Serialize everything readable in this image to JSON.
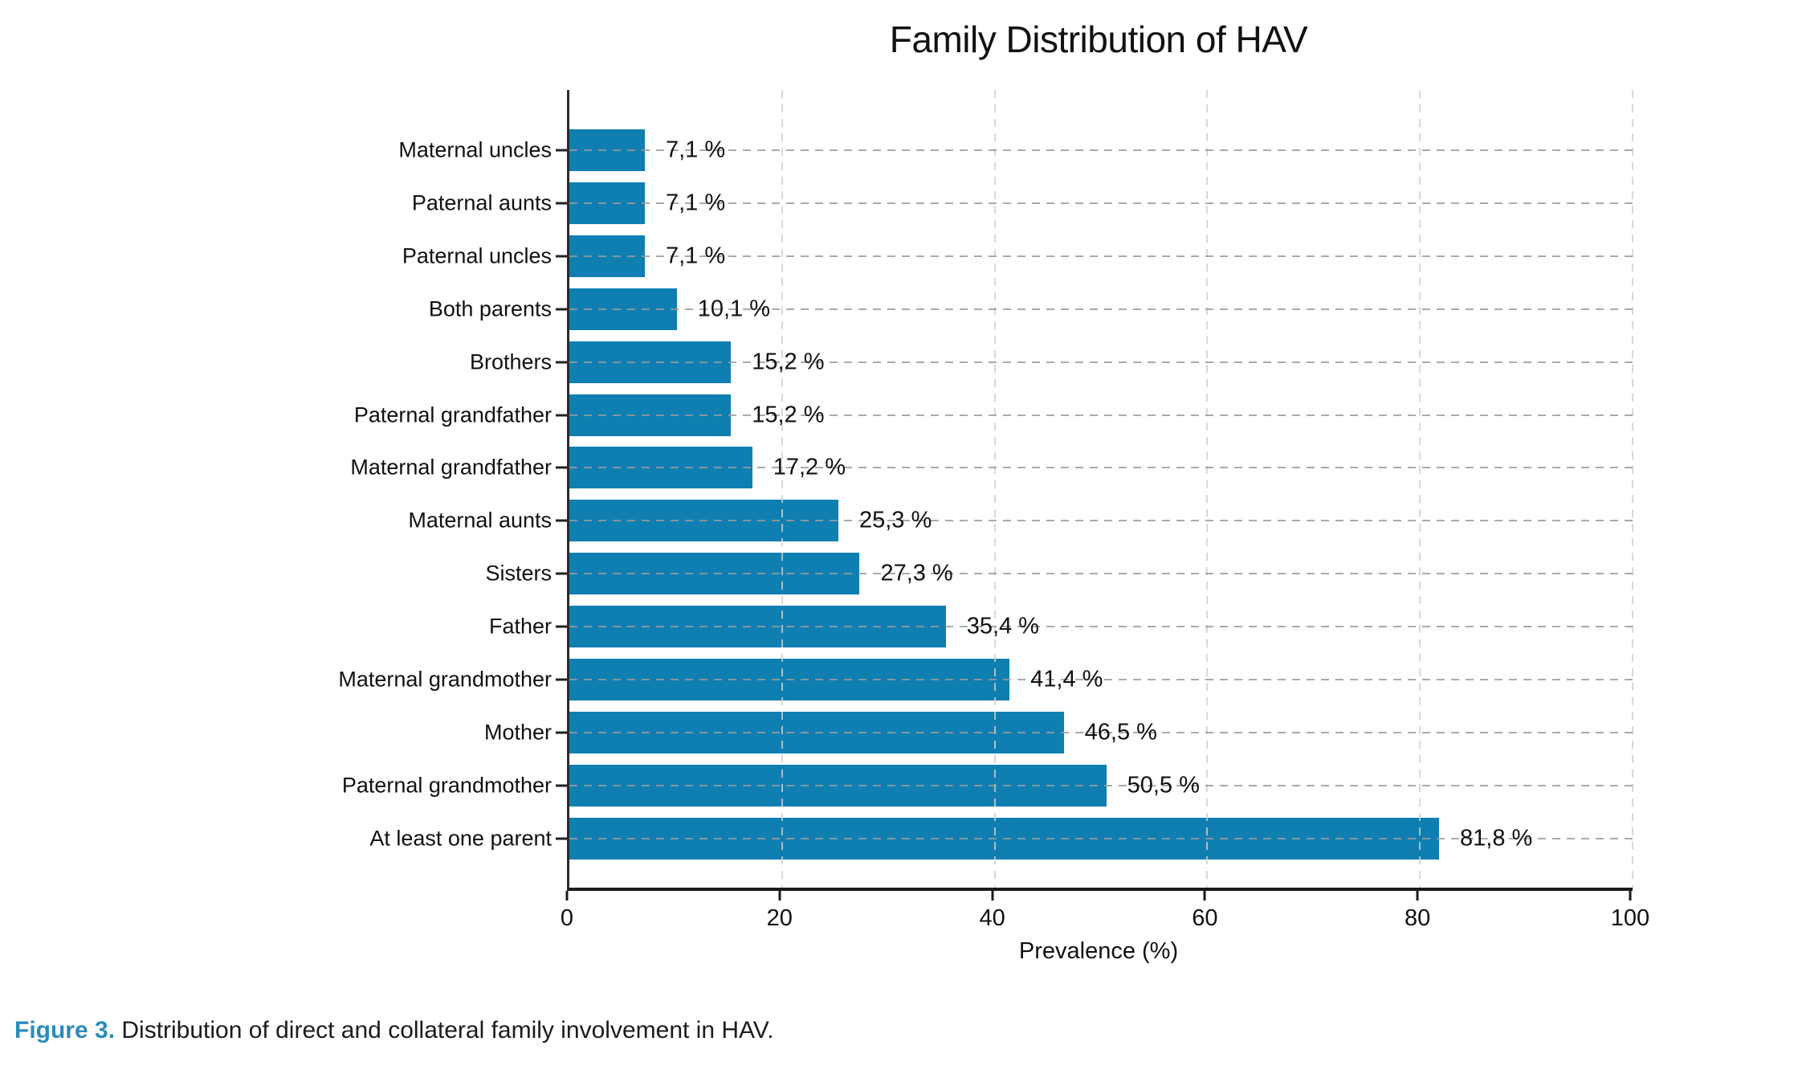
{
  "chart_data": {
    "type": "bar",
    "orientation": "horizontal",
    "title": "Family Distribution of HAV",
    "xlabel": "Prevalence (%)",
    "ylabel": "",
    "xlim": [
      0,
      100
    ],
    "grid": "dashed",
    "legend": "none",
    "bar_color": "#0f7fb2",
    "rows": [
      {
        "label": "Maternal uncles",
        "value": 7.1,
        "display": "7,1 %"
      },
      {
        "label": "Paternal aunts",
        "value": 7.1,
        "display": "7,1 %"
      },
      {
        "label": "Paternal uncles",
        "value": 7.1,
        "display": "7,1 %"
      },
      {
        "label": "Both parents",
        "value": 10.1,
        "display": "10,1 %"
      },
      {
        "label": "Brothers",
        "value": 15.2,
        "display": "15,2 %"
      },
      {
        "label": "Paternal grandfather",
        "value": 15.2,
        "display": "15,2 %"
      },
      {
        "label": "Maternal grandfather",
        "value": 17.2,
        "display": "17,2 %"
      },
      {
        "label": "Maternal aunts",
        "value": 25.3,
        "display": "25,3 %"
      },
      {
        "label": "Sisters",
        "value": 27.3,
        "display": "27,3 %"
      },
      {
        "label": "Father",
        "value": 35.4,
        "display": "35,4 %"
      },
      {
        "label": "Maternal grandmother",
        "value": 41.4,
        "display": "41,4 %"
      },
      {
        "label": "Mother",
        "value": 46.5,
        "display": "46,5 %"
      },
      {
        "label": "Paternal grandmother",
        "value": 50.5,
        "display": "50,5 %"
      },
      {
        "label": "At least one parent",
        "value": 81.8,
        "display": "81,8 %"
      }
    ],
    "xticks": [
      0,
      20,
      40,
      60,
      80,
      100
    ]
  },
  "caption": {
    "prefix": "Figure 3.",
    "text": " Distribution of direct and collateral family involvement in HAV."
  },
  "colors": {
    "bar": "#0f7fb2",
    "caption_accent": "#2b8cba",
    "grid": "#cfcfcf",
    "axis": "#1a1a1a",
    "text": "#111111"
  }
}
